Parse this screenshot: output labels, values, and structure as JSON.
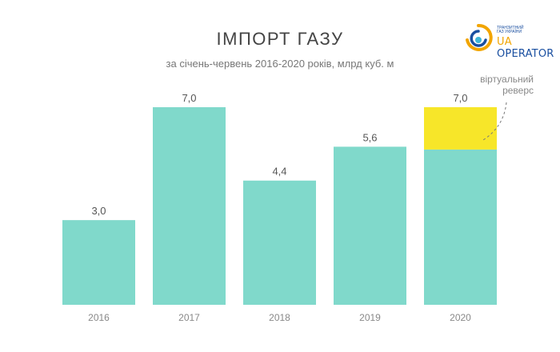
{
  "header": {
    "title": "ІМПОРТ ГАЗУ",
    "subtitle": "за січень-червень 2016-2020 років, млрд куб. м"
  },
  "logo": {
    "small_text": "ТРАНЗИТНИЙ ГАЗ УКРАЇНИ",
    "ua": "UA",
    "word": "OPERATOR"
  },
  "colors": {
    "bar": "#80d9cb",
    "reverse": "#f7e629",
    "logo_blue": "#1a4fa0",
    "logo_yellow": "#f2a500"
  },
  "chart_data": {
    "type": "bar",
    "title": "ІМПОРТ ГАЗУ",
    "subtitle": "за січень-червень 2016-2020 років, млрд куб. м",
    "xlabel": "",
    "ylabel": "",
    "categories": [
      "2016",
      "2017",
      "2018",
      "2019",
      "2020"
    ],
    "totals": [
      3.0,
      7.0,
      4.4,
      5.6,
      7.0
    ],
    "total_labels": [
      "3,0",
      "7,0",
      "4,4",
      "5,6",
      "7,0"
    ],
    "series": [
      {
        "name": "",
        "values": [
          3.0,
          7.0,
          4.4,
          5.6,
          5.5
        ]
      },
      {
        "name": "віртуальний реверс",
        "values": [
          0,
          0,
          0,
          0,
          1.5
        ]
      }
    ],
    "ylim": [
      0,
      7.3
    ],
    "grid": false,
    "annotation": {
      "lines": [
        "віртуальний",
        "реверс"
      ],
      "target_category": "2020"
    }
  }
}
